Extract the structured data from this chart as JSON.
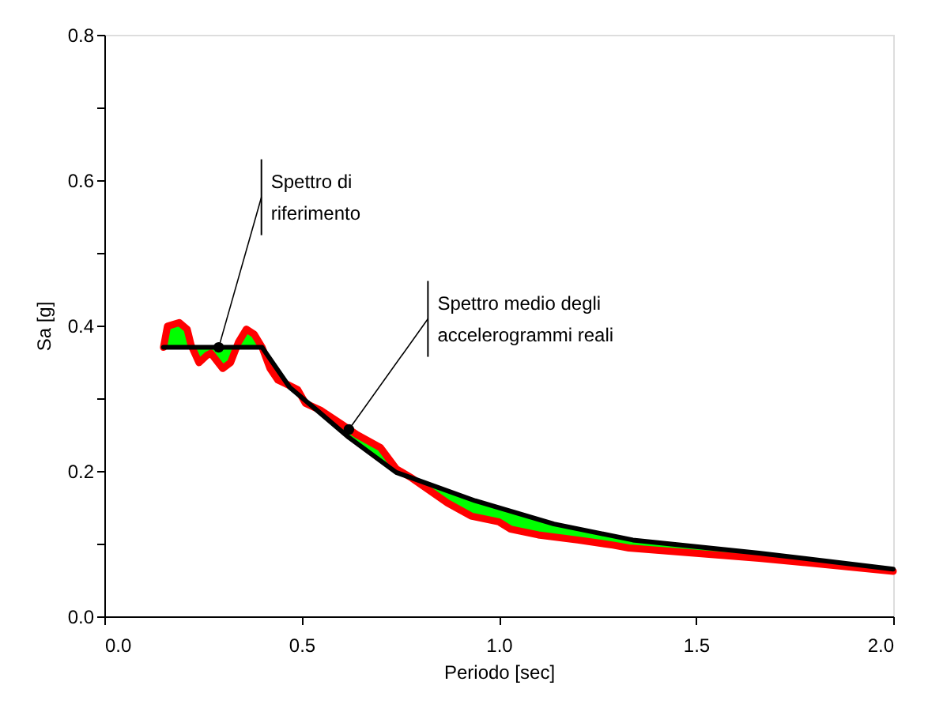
{
  "chart_data": {
    "type": "line",
    "xlabel": "Periodo [sec]",
    "ylabel": "Sa [g]",
    "xlim": [
      0,
      2.0
    ],
    "ylim": [
      0,
      0.8
    ],
    "xticks": [
      {
        "value": 0,
        "label": "0.0"
      },
      {
        "value": 0.5,
        "label": "0.5"
      },
      {
        "value": 1.0,
        "label": "1.0"
      },
      {
        "value": 1.5,
        "label": "1.5"
      },
      {
        "value": 2.0,
        "label": "2.0"
      }
    ],
    "yticks": [
      {
        "value": 0,
        "label": "0.0"
      },
      {
        "value": 0.1,
        "label": null
      },
      {
        "value": 0.2,
        "label": "0.2"
      },
      {
        "value": 0.3,
        "label": null
      },
      {
        "value": 0.4,
        "label": "0.4"
      },
      {
        "value": 0.5,
        "label": null
      },
      {
        "value": 0.6,
        "label": "0.6"
      },
      {
        "value": 0.7,
        "label": null
      },
      {
        "value": 0.8,
        "label": "0.8"
      }
    ],
    "grid": false,
    "marker": "none",
    "line_style": "solid",
    "series": [
      {
        "color": "#ff0000",
        "x": [
          0.15,
          0.16,
          0.19,
          0.21,
          0.22,
          0.24,
          0.26,
          0.27,
          0.3,
          0.32,
          0.34,
          0.36,
          0.38,
          0.4,
          0.42,
          0.44,
          0.46,
          0.49,
          0.51,
          0.55,
          0.6,
          0.64,
          0.7,
          0.74,
          0.78,
          0.87,
          0.93,
          1.0,
          1.03,
          1.1,
          1.2,
          1.29,
          1.33,
          1.66,
          2.0
        ],
        "values": [
          0.37,
          0.399,
          0.404,
          0.395,
          0.373,
          0.349,
          0.359,
          0.362,
          0.341,
          0.349,
          0.377,
          0.395,
          0.388,
          0.37,
          0.341,
          0.325,
          0.32,
          0.312,
          0.293,
          0.283,
          0.265,
          0.25,
          0.232,
          0.203,
          0.19,
          0.156,
          0.138,
          0.13,
          0.12,
          0.112,
          0.105,
          0.098,
          0.094,
          0.08,
          0.062
        ],
        "lower": [
          0.37,
          0.37,
          0.37,
          0.37,
          0.37,
          0.349,
          0.359,
          0.362,
          0.341,
          0.349,
          0.37,
          0.37,
          0.37,
          0.37,
          0.341,
          0.325,
          0.32,
          0.306,
          0.293,
          0.278,
          0.255,
          0.238,
          0.214,
          0.198,
          0.19,
          0.156,
          0.138,
          0.13,
          0.12,
          0.112,
          0.105,
          0.098,
          0.094,
          0.08,
          0.062
        ],
        "upper": [
          0.37,
          0.399,
          0.404,
          0.395,
          0.373,
          0.37,
          0.37,
          0.37,
          0.37,
          0.37,
          0.377,
          0.395,
          0.388,
          0.37,
          0.354,
          0.339,
          0.323,
          0.312,
          0.297,
          0.283,
          0.265,
          0.25,
          0.232,
          0.203,
          0.19,
          0.173,
          0.161,
          0.149,
          0.145,
          0.133,
          0.12,
          0.111,
          0.106,
          0.087,
          0.065
        ]
      },
      {
        "color": "#000000",
        "x": [
          0.15,
          0.4,
          0.47,
          0.54,
          0.62,
          0.74,
          0.94,
          1.14,
          1.34,
          1.66,
          2.0
        ],
        "values": [
          0.37,
          0.37,
          0.315,
          0.283,
          0.246,
          0.198,
          0.159,
          0.127,
          0.105,
          0.087,
          0.065
        ]
      }
    ],
    "annotations": [
      {
        "text": "Spettro di\nriferimento",
        "x": 0.29,
        "y": 0.37
      },
      {
        "text": "Spettro medio degli\naccelerogrammi reali",
        "x": 0.62,
        "y": 0.257
      }
    ]
  }
}
